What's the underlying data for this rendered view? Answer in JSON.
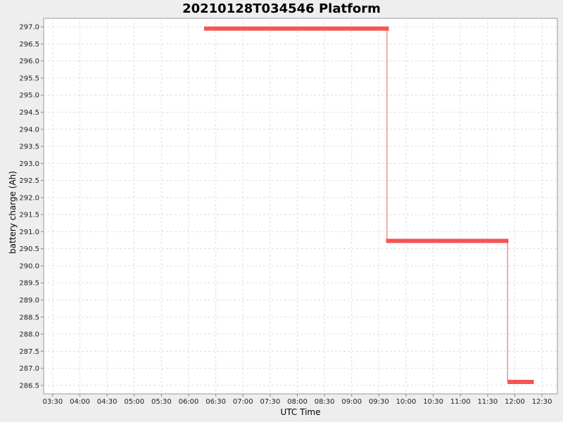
{
  "chart_data": {
    "type": "line",
    "title": "20210128T034546 Platform",
    "xlabel": "UTC Time",
    "ylabel": "battery charge (Ah)",
    "x_ticks": [
      "03:30",
      "04:00",
      "04:30",
      "05:00",
      "05:30",
      "06:00",
      "06:30",
      "07:00",
      "07:30",
      "08:00",
      "08:30",
      "09:00",
      "09:30",
      "10:00",
      "10:30",
      "11:00",
      "11:30",
      "12:00",
      "12:30"
    ],
    "y_ticks": [
      "286.5",
      "287.0",
      "287.5",
      "288.0",
      "288.5",
      "289.0",
      "289.5",
      "290.0",
      "290.5",
      "291.0",
      "291.5",
      "292.0",
      "292.5",
      "293.0",
      "293.5",
      "294.0",
      "294.5",
      "295.0",
      "295.5",
      "296.0",
      "296.5",
      "297.0"
    ],
    "xlim": [
      "03:20",
      "12:47"
    ],
    "ylim": [
      286.25,
      297.25
    ],
    "grid": true,
    "series": [
      {
        "color": "#f55555",
        "segments": [
          {
            "x_start": "06:17",
            "x_end": "09:41",
            "y": 296.95
          },
          {
            "x_start": "09:38",
            "x_end": "11:53",
            "y": 290.73
          },
          {
            "x_start": "11:52",
            "x_end": "12:21",
            "y": 286.6
          }
        ],
        "transitions": [
          {
            "x": "09:39",
            "y_from": 296.95,
            "y_to": 290.73
          },
          {
            "x": "11:52",
            "y_from": 290.73,
            "y_to": 286.6
          }
        ]
      }
    ]
  }
}
